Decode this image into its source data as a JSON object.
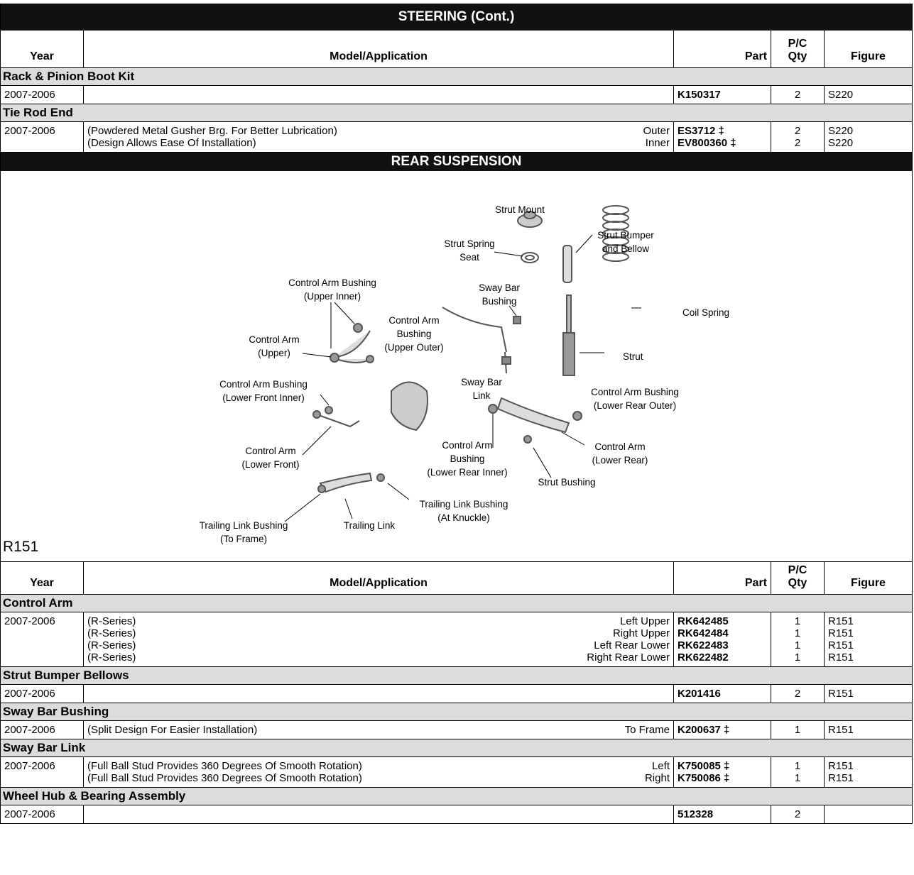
{
  "sections": [
    {
      "title": "STEERING (Cont.)",
      "header": {
        "year": "Year",
        "model": "Model/Application",
        "part": "Part",
        "qty": "P/C Qty",
        "figure": "Figure"
      },
      "groups": [
        {
          "name": "Rack & Pinion Boot Kit",
          "rows": [
            {
              "year": "2007-2006",
              "lines": [
                {
                  "part": "K150317",
                  "qty": 2,
                  "figure": "S220"
                }
              ]
            }
          ]
        },
        {
          "name": "Tie Rod End",
          "rows": [
            {
              "year": "2007-2006",
              "lines": [
                {
                  "model": "(Powdered Metal Gusher Brg. For Better Lubrication)",
                  "position": "Outer",
                  "part": "ES3712 ‡",
                  "qty": 2,
                  "figure": "S220"
                },
                {
                  "model": "(Design Allows Ease Of Installation)",
                  "position": "Inner",
                  "part": "EV800360 ‡",
                  "qty": 2,
                  "figure": "S220"
                }
              ]
            }
          ]
        }
      ]
    },
    {
      "title": "REAR SUSPENSION",
      "diagram": {
        "figure_id": "R151",
        "labels": [
          [
            "Strut Mount"
          ],
          [
            "Strut Spring",
            "Seat"
          ],
          [
            "Strut Bumper",
            "and Bellow"
          ],
          [
            "Control Arm Bushing",
            "(Upper Inner)"
          ],
          [
            "Sway Bar",
            "Bushing"
          ],
          [
            "Coil Spring"
          ],
          [
            "Control Arm",
            "Bushing",
            "(Upper Outer)"
          ],
          [
            "Control Arm",
            "(Upper)"
          ],
          [
            "Strut"
          ],
          [
            "Sway Bar",
            "Link"
          ],
          [
            "Control Arm Bushing",
            "(Lower Front Inner)"
          ],
          [
            "Control Arm Bushing",
            "(Lower Rear Outer)"
          ],
          [
            "Control Arm",
            "Bushing",
            "(Lower Rear Inner)"
          ],
          [
            "Control Arm",
            "(Lower Rear)"
          ],
          [
            "Control Arm",
            "(Lower Front)"
          ],
          [
            "Strut Bushing"
          ],
          [
            "Trailing Link Bushing",
            "(At Knuckle)"
          ],
          [
            "Trailing Link Bushing",
            "(To Frame)"
          ],
          [
            "Trailing Link"
          ]
        ]
      },
      "header": {
        "year": "Year",
        "model": "Model/Application",
        "part": "Part",
        "qty": "P/C Qty",
        "figure": "Figure"
      },
      "groups": [
        {
          "name": "Control Arm",
          "rows": [
            {
              "year": "2007-2006",
              "lines": [
                {
                  "model": "(R-Series)",
                  "position": "Left Upper",
                  "part": "RK642485",
                  "qty": 1,
                  "figure": "R151"
                },
                {
                  "model": "(R-Series)",
                  "position": "Right Upper",
                  "part": "RK642484",
                  "qty": 1,
                  "figure": "R151"
                },
                {
                  "model": "(R-Series)",
                  "position": "Left Rear Lower",
                  "part": "RK622483",
                  "qty": 1,
                  "figure": "R151"
                },
                {
                  "model": "(R-Series)",
                  "position": "Right Rear Lower",
                  "part": "RK622482",
                  "qty": 1,
                  "figure": "R151"
                }
              ]
            }
          ]
        },
        {
          "name": "Strut Bumper Bellows",
          "rows": [
            {
              "year": "2007-2006",
              "lines": [
                {
                  "part": "K201416",
                  "qty": 2,
                  "figure": "R151"
                }
              ]
            }
          ]
        },
        {
          "name": "Sway Bar Bushing",
          "rows": [
            {
              "year": "2007-2006",
              "lines": [
                {
                  "model": "(Split Design For Easier Installation)",
                  "position": "To Frame",
                  "part": "K200637 ‡",
                  "qty": 1,
                  "figure": "R151"
                }
              ]
            }
          ]
        },
        {
          "name": "Sway Bar Link",
          "rows": [
            {
              "year": "2007-2006",
              "lines": [
                {
                  "model": "(Full Ball Stud Provides 360 Degrees Of Smooth Rotation)",
                  "position": "Left",
                  "part": "K750085 ‡",
                  "qty": 1,
                  "figure": "R151"
                },
                {
                  "model": "(Full Ball Stud Provides 360 Degrees Of Smooth Rotation)",
                  "position": "Right",
                  "part": "K750086 ‡",
                  "qty": 1,
                  "figure": "R151"
                }
              ]
            }
          ]
        },
        {
          "name": "Wheel Hub & Bearing Assembly",
          "rows": [
            {
              "year": "2007-2006",
              "lines": [
                {
                  "part": "512328",
                  "qty": 2
                }
              ]
            }
          ]
        }
      ]
    }
  ]
}
